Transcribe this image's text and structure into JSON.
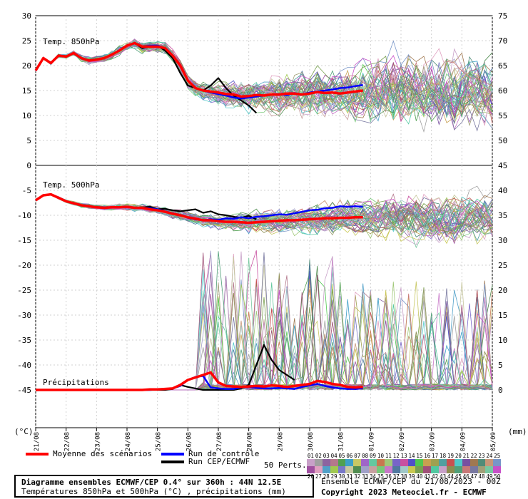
{
  "chart_data": {
    "type": "line",
    "panels": [
      {
        "label": "Temp. 850hPa",
        "unit": "°C",
        "ylim": [
          0,
          30
        ],
        "yticks": [
          5,
          10,
          15,
          20,
          25,
          30
        ]
      },
      {
        "label": "Temp. 500hPa",
        "unit": "°C",
        "ylim": [
          -45,
          0
        ],
        "yticks": [
          -5,
          -10,
          -15,
          -20,
          -25,
          -30,
          -35,
          -40,
          -45
        ]
      },
      {
        "label": "Précipitations",
        "unit": "mm",
        "ylim": [
          0,
          45
        ],
        "yticks": [
          0,
          5,
          10,
          15,
          20,
          25,
          30,
          35,
          40,
          45
        ]
      }
    ],
    "left_axis_ticks": [
      "30",
      "25",
      "20",
      "15",
      "10",
      "5",
      "0",
      "-5",
      "-10",
      "-15",
      "-20",
      "-25",
      "-30",
      "-35",
      "-40",
      "-45"
    ],
    "right_axis_ticks": [
      "75",
      "70",
      "65",
      "60",
      "55",
      "50",
      "45",
      "40",
      "35",
      "30",
      "25",
      "20",
      "15",
      "10",
      "5",
      "0"
    ],
    "x_dates": [
      "21/08",
      "22/08",
      "23/08",
      "24/08",
      "25/08",
      "26/08",
      "27/08",
      "28/08",
      "29/08",
      "30/08",
      "31/08",
      "01/09",
      "02/09",
      "03/09",
      "04/09",
      "05/09"
    ],
    "left_unit": "(°C)",
    "right_unit": "(mm)",
    "series": [
      {
        "name": "Moyenne des scénarios",
        "color": "#ff0000",
        "t850": [
          19,
          21.5,
          20.5,
          22,
          21.8,
          22.5,
          21.5,
          21,
          21.2,
          21.5,
          22.2,
          23,
          24,
          24.5,
          23.8,
          23.8,
          23.8,
          23.5,
          22,
          20,
          17,
          15.5,
          15,
          14.8,
          14.6,
          14.3,
          14.2,
          13.8,
          13.9,
          14.1,
          14,
          14.2,
          14.2,
          14.4,
          14.4,
          14.2,
          14.4,
          14.7,
          14.5,
          14.6,
          14.4,
          14.6,
          14.8,
          15
        ],
        "t500": [
          -7,
          -6,
          -5.8,
          -6.5,
          -7.2,
          -7.6,
          -8,
          -8.2,
          -8.4,
          -8.5,
          -8.4,
          -8.4,
          -8.3,
          -8.5,
          -8.5,
          -8.8,
          -9,
          -9.3,
          -9.7,
          -10,
          -10.4,
          -10.7,
          -11,
          -11,
          -11.2,
          -11.3,
          -11.3,
          -11.4,
          -11.5,
          -11.4,
          -11.3,
          -11.2,
          -11.1,
          -11,
          -11,
          -10.9,
          -10.8,
          -10.7,
          -10.6,
          -10.6,
          -10.5,
          -10.5,
          -10.4,
          -10.4
        ],
        "precip": [
          0,
          0,
          0,
          0,
          0,
          0,
          0,
          0,
          0,
          0,
          0,
          0,
          0,
          0,
          0,
          0.1,
          0.1,
          0.2,
          0.3,
          1,
          2,
          2.5,
          3,
          3.5,
          1.5,
          0.8,
          0.7,
          0.6,
          0.7,
          0.8,
          0.7,
          0.9,
          0.8,
          0.6,
          0.8,
          1,
          1.2,
          1.8,
          1.6,
          1.2,
          1,
          0.6,
          0.5,
          0.6
        ]
      },
      {
        "name": "Run de contrôle",
        "color": "#0000ff",
        "t850": [
          19,
          21.5,
          20.5,
          22,
          21.8,
          22.5,
          21.5,
          21,
          21.2,
          21.5,
          22.2,
          23,
          24,
          24.5,
          23.8,
          24,
          24,
          23.5,
          22,
          20,
          17,
          15.5,
          15,
          14.6,
          14.3,
          14,
          13.6,
          13.4,
          13.6,
          13.8,
          14,
          14.2,
          14.3,
          14.1,
          14.5,
          14.2,
          14.6,
          14.8,
          15,
          15.2,
          15.5,
          15.6,
          15.9,
          16.1
        ],
        "t500": [
          -7,
          -6,
          -5.8,
          -6.5,
          -7.2,
          -7.6,
          -8,
          -8.2,
          -8.4,
          -8.5,
          -8.4,
          -8.4,
          -8.3,
          -8.5,
          -8.5,
          -8.6,
          -8.8,
          -9.2,
          -9.6,
          -10,
          -10.5,
          -10.8,
          -11,
          -10.8,
          -10.9,
          -10.6,
          -10.7,
          -10.4,
          -10.6,
          -10.3,
          -10.2,
          -10,
          -9.8,
          -9.9,
          -9.6,
          -9.3,
          -9,
          -8.9,
          -8.6,
          -8.5,
          -8.2,
          -8.3,
          -8.2,
          -8.3
        ],
        "precip": [
          0,
          0,
          0,
          0,
          0,
          0,
          0,
          0,
          0,
          0,
          0,
          0,
          0,
          0,
          0,
          0,
          0.1,
          0.2,
          0.3,
          0.8,
          2,
          2.6,
          2.8,
          0.5,
          0.3,
          0.2,
          0.2,
          0.5,
          0.6,
          0.4,
          0.3,
          0.3,
          0.4,
          0.3,
          0.2,
          0.6,
          0.9,
          1.2,
          0.8,
          0.5,
          0.3,
          0.2,
          0.2,
          0.3
        ]
      },
      {
        "name": "Run CEP/ECMWF",
        "color": "#000000",
        "t850": [
          19,
          21.5,
          20.5,
          22,
          21.8,
          22.5,
          21.5,
          21,
          21.2,
          21.5,
          22.2,
          23,
          24,
          24.5,
          23.5,
          23.8,
          24,
          23,
          21.5,
          18.5,
          16,
          15.5,
          15,
          16,
          17.5,
          15.5,
          14,
          13,
          12,
          10.5
        ],
        "t500": [
          -7,
          -6,
          -5.8,
          -6.5,
          -7.2,
          -7.6,
          -8,
          -8.2,
          -8.4,
          -8.5,
          -8.4,
          -8.4,
          -8.3,
          -8.5,
          -8.4,
          -8.3,
          -8.8,
          -8.7,
          -9,
          -9.2,
          -9,
          -8.8,
          -9.5,
          -9.2,
          -9.8,
          -10,
          -10.3,
          -10.5,
          -10.1,
          -10.8
        ],
        "precip": [
          0,
          0,
          0,
          0,
          0,
          0,
          0,
          0,
          0,
          0,
          0,
          0,
          0,
          0,
          0,
          0,
          0,
          0,
          0.2,
          1,
          0.6,
          0.3,
          0,
          0,
          0,
          0,
          0,
          0.3,
          1,
          5,
          9,
          6,
          4,
          3,
          2
        ]
      }
    ],
    "perturbations": {
      "count": 50,
      "label": "50 Perts."
    }
  },
  "legend": {
    "mean": "Moyenne des scénarios",
    "control": "Run de contrôle",
    "cep": "Run CEP/ECMWF"
  },
  "pert_numbers_top": [
    "01",
    "02",
    "03",
    "04",
    "05",
    "06",
    "07",
    "08",
    "09",
    "10",
    "11",
    "12",
    "13",
    "14",
    "15",
    "16",
    "17",
    "18",
    "19",
    "20",
    "21",
    "22",
    "23",
    "24",
    "25"
  ],
  "pert_numbers_bottom": [
    "26",
    "27",
    "28",
    "29",
    "30",
    "31",
    "32",
    "33",
    "34",
    "35",
    "36",
    "37",
    "38",
    "39",
    "40",
    "41",
    "42",
    "43",
    "44",
    "45",
    "46",
    "47",
    "48",
    "49",
    "50"
  ],
  "pert_colors_top": [
    "#c8a0c8",
    "#a0a0a0",
    "#8c64a0",
    "#b4788c",
    "#50a050",
    "#3ca0c8",
    "#c8c864",
    "#a064c8",
    "#64c8a0",
    "#c87850",
    "#a0c878",
    "#7864c8",
    "#c850a0",
    "#5050c8",
    "#50c850",
    "#c8a050",
    "#a0a050",
    "#50a0a0",
    "#c85050",
    "#50c8c8",
    "#7850a0",
    "#a07850",
    "#508c78",
    "#c89678",
    "#7896c8"
  ],
  "pert_colors_bottom": [
    "#a050a0",
    "#e0a0c0",
    "#50a0c8",
    "#a0c850",
    "#7878c8",
    "#c8c8a0",
    "#508c50",
    "#a0a0c8",
    "#c8a0a0",
    "#78c878",
    "#c878c8",
    "#5078a0",
    "#a0c8c8",
    "#c8c850",
    "#78a050",
    "#a05078",
    "#50c8a0",
    "#c8a0c8",
    "#8c8c50",
    "#50a078",
    "#c87878",
    "#7878a0",
    "#a0a078",
    "#78c8a0",
    "#c850c8"
  ],
  "footer": {
    "title": "Diagramme ensembles ECMWF/CEP 0.4° sur 360h : 44N 12.5E",
    "subtitle": "Températures 850hPa et 500hPa (°C) , précipitations (mm)",
    "ensemble": "Ensemble ECMWF/CEP du 21/08/2023 - 00Z",
    "copyright": "Copyright 2023 Meteociel.fr - ECMWF"
  }
}
